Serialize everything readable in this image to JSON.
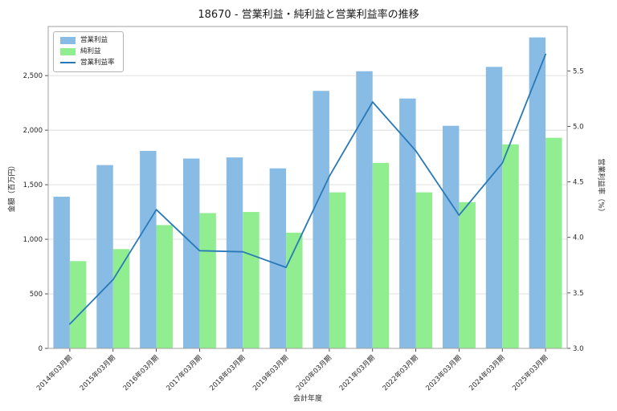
{
  "chart_data": {
    "type": "bar",
    "subtype": "grouped-bars-with-line",
    "title": "18670 - 営業利益・純利益と営業利益率の推移",
    "xlabel": "会計年度",
    "ylabel_left": "金額（百万円）",
    "ylabel_right": "営業利益率（%）",
    "categories": [
      "2014年03月期",
      "2015年03月期",
      "2016年03月期",
      "2017年03月期",
      "2018年03月期",
      "2019年03月期",
      "2020年03月期",
      "2021年03月期",
      "2022年03月期",
      "2023年03月期",
      "2024年03月期",
      "2025年03月期"
    ],
    "series": [
      {
        "name": "営業利益",
        "type": "bar",
        "axis": "left",
        "color": "#89bce5",
        "values": [
          1390,
          1680,
          1810,
          1740,
          1750,
          1650,
          2360,
          2540,
          2290,
          2040,
          2580,
          2850
        ]
      },
      {
        "name": "純利益",
        "type": "bar",
        "axis": "left",
        "color": "#90ee90",
        "values": [
          800,
          910,
          1130,
          1240,
          1250,
          1060,
          1430,
          1700,
          1430,
          1340,
          1870,
          1930
        ]
      },
      {
        "name": "営業利益率",
        "type": "line",
        "axis": "right",
        "color": "#2979b8",
        "values": [
          3.22,
          3.62,
          4.25,
          3.88,
          3.87,
          3.73,
          4.55,
          5.22,
          4.78,
          4.2,
          4.67,
          5.65
        ]
      }
    ],
    "left_axis": {
      "min": 0,
      "max": 2950,
      "ticks": [
        0,
        500,
        1000,
        1500,
        2000,
        2500
      ]
    },
    "right_axis": {
      "min": 3.0,
      "max": 5.9,
      "ticks": [
        3.0,
        3.5,
        4.0,
        4.5,
        5.0,
        5.5
      ]
    },
    "grid": "horizontal",
    "legend_position": "upper-left",
    "colors": {
      "grid": "#dcdcdc",
      "border": "#a0a0a0",
      "text": "#262626",
      "background": "#ffffff"
    }
  }
}
